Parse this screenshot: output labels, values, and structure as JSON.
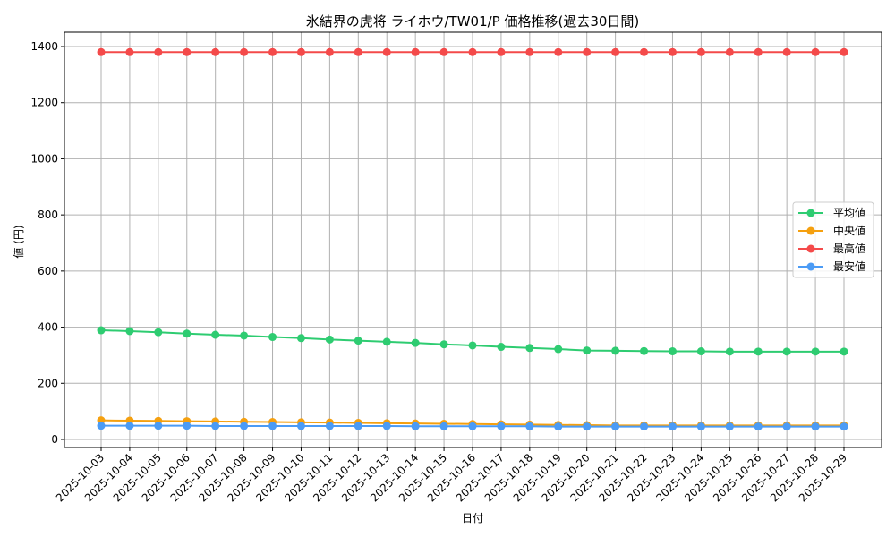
{
  "chart_data": {
    "type": "line",
    "title": "氷結界の虎将 ライホウ/TW01/P 価格推移(過去30日間)",
    "xlabel": "日付",
    "ylabel": "値 (円)",
    "ylim": [
      -30,
      1450
    ],
    "yticks": [
      0,
      200,
      400,
      600,
      800,
      1000,
      1200,
      1400
    ],
    "grid": true,
    "legend_position": "center-right",
    "x": [
      "2025-10-03",
      "2025-10-04",
      "2025-10-05",
      "2025-10-06",
      "2025-10-07",
      "2025-10-08",
      "2025-10-09",
      "2025-10-10",
      "2025-10-11",
      "2025-10-12",
      "2025-10-13",
      "2025-10-14",
      "2025-10-15",
      "2025-10-16",
      "2025-10-17",
      "2025-10-18",
      "2025-10-19",
      "2025-10-20",
      "2025-10-21",
      "2025-10-22",
      "2025-10-23",
      "2025-10-24",
      "2025-10-25",
      "2025-10-26",
      "2025-10-27",
      "2025-10-28",
      "2025-10-29"
    ],
    "series": [
      {
        "name": "平均値",
        "color": "#2ecc71",
        "values": [
          389,
          386,
          382,
          377,
          373,
          370,
          365,
          361,
          356,
          352,
          348,
          344,
          339,
          335,
          330,
          326,
          322,
          317,
          316,
          315,
          314,
          314,
          313,
          313,
          313,
          313,
          313
        ]
      },
      {
        "name": "中央値",
        "color": "#f5a00f",
        "values": [
          68,
          67,
          66,
          65,
          64,
          63,
          62,
          61,
          60,
          59,
          58,
          57,
          56,
          55,
          54,
          53,
          52,
          51,
          50,
          50,
          50,
          50,
          50,
          50,
          50,
          50,
          50
        ]
      },
      {
        "name": "最高値",
        "color": "#f44a4a",
        "values": [
          1380,
          1380,
          1380,
          1380,
          1380,
          1380,
          1380,
          1380,
          1380,
          1380,
          1380,
          1380,
          1380,
          1380,
          1380,
          1380,
          1380,
          1380,
          1380,
          1380,
          1380,
          1380,
          1380,
          1380,
          1380,
          1380,
          1380
        ]
      },
      {
        "name": "最安値",
        "color": "#4b9bf5",
        "values": [
          49,
          49,
          49,
          49,
          48,
          48,
          48,
          48,
          48,
          48,
          48,
          47,
          47,
          47,
          47,
          47,
          46,
          46,
          46,
          46,
          46,
          46,
          46,
          46,
          46,
          46,
          46
        ]
      }
    ]
  }
}
